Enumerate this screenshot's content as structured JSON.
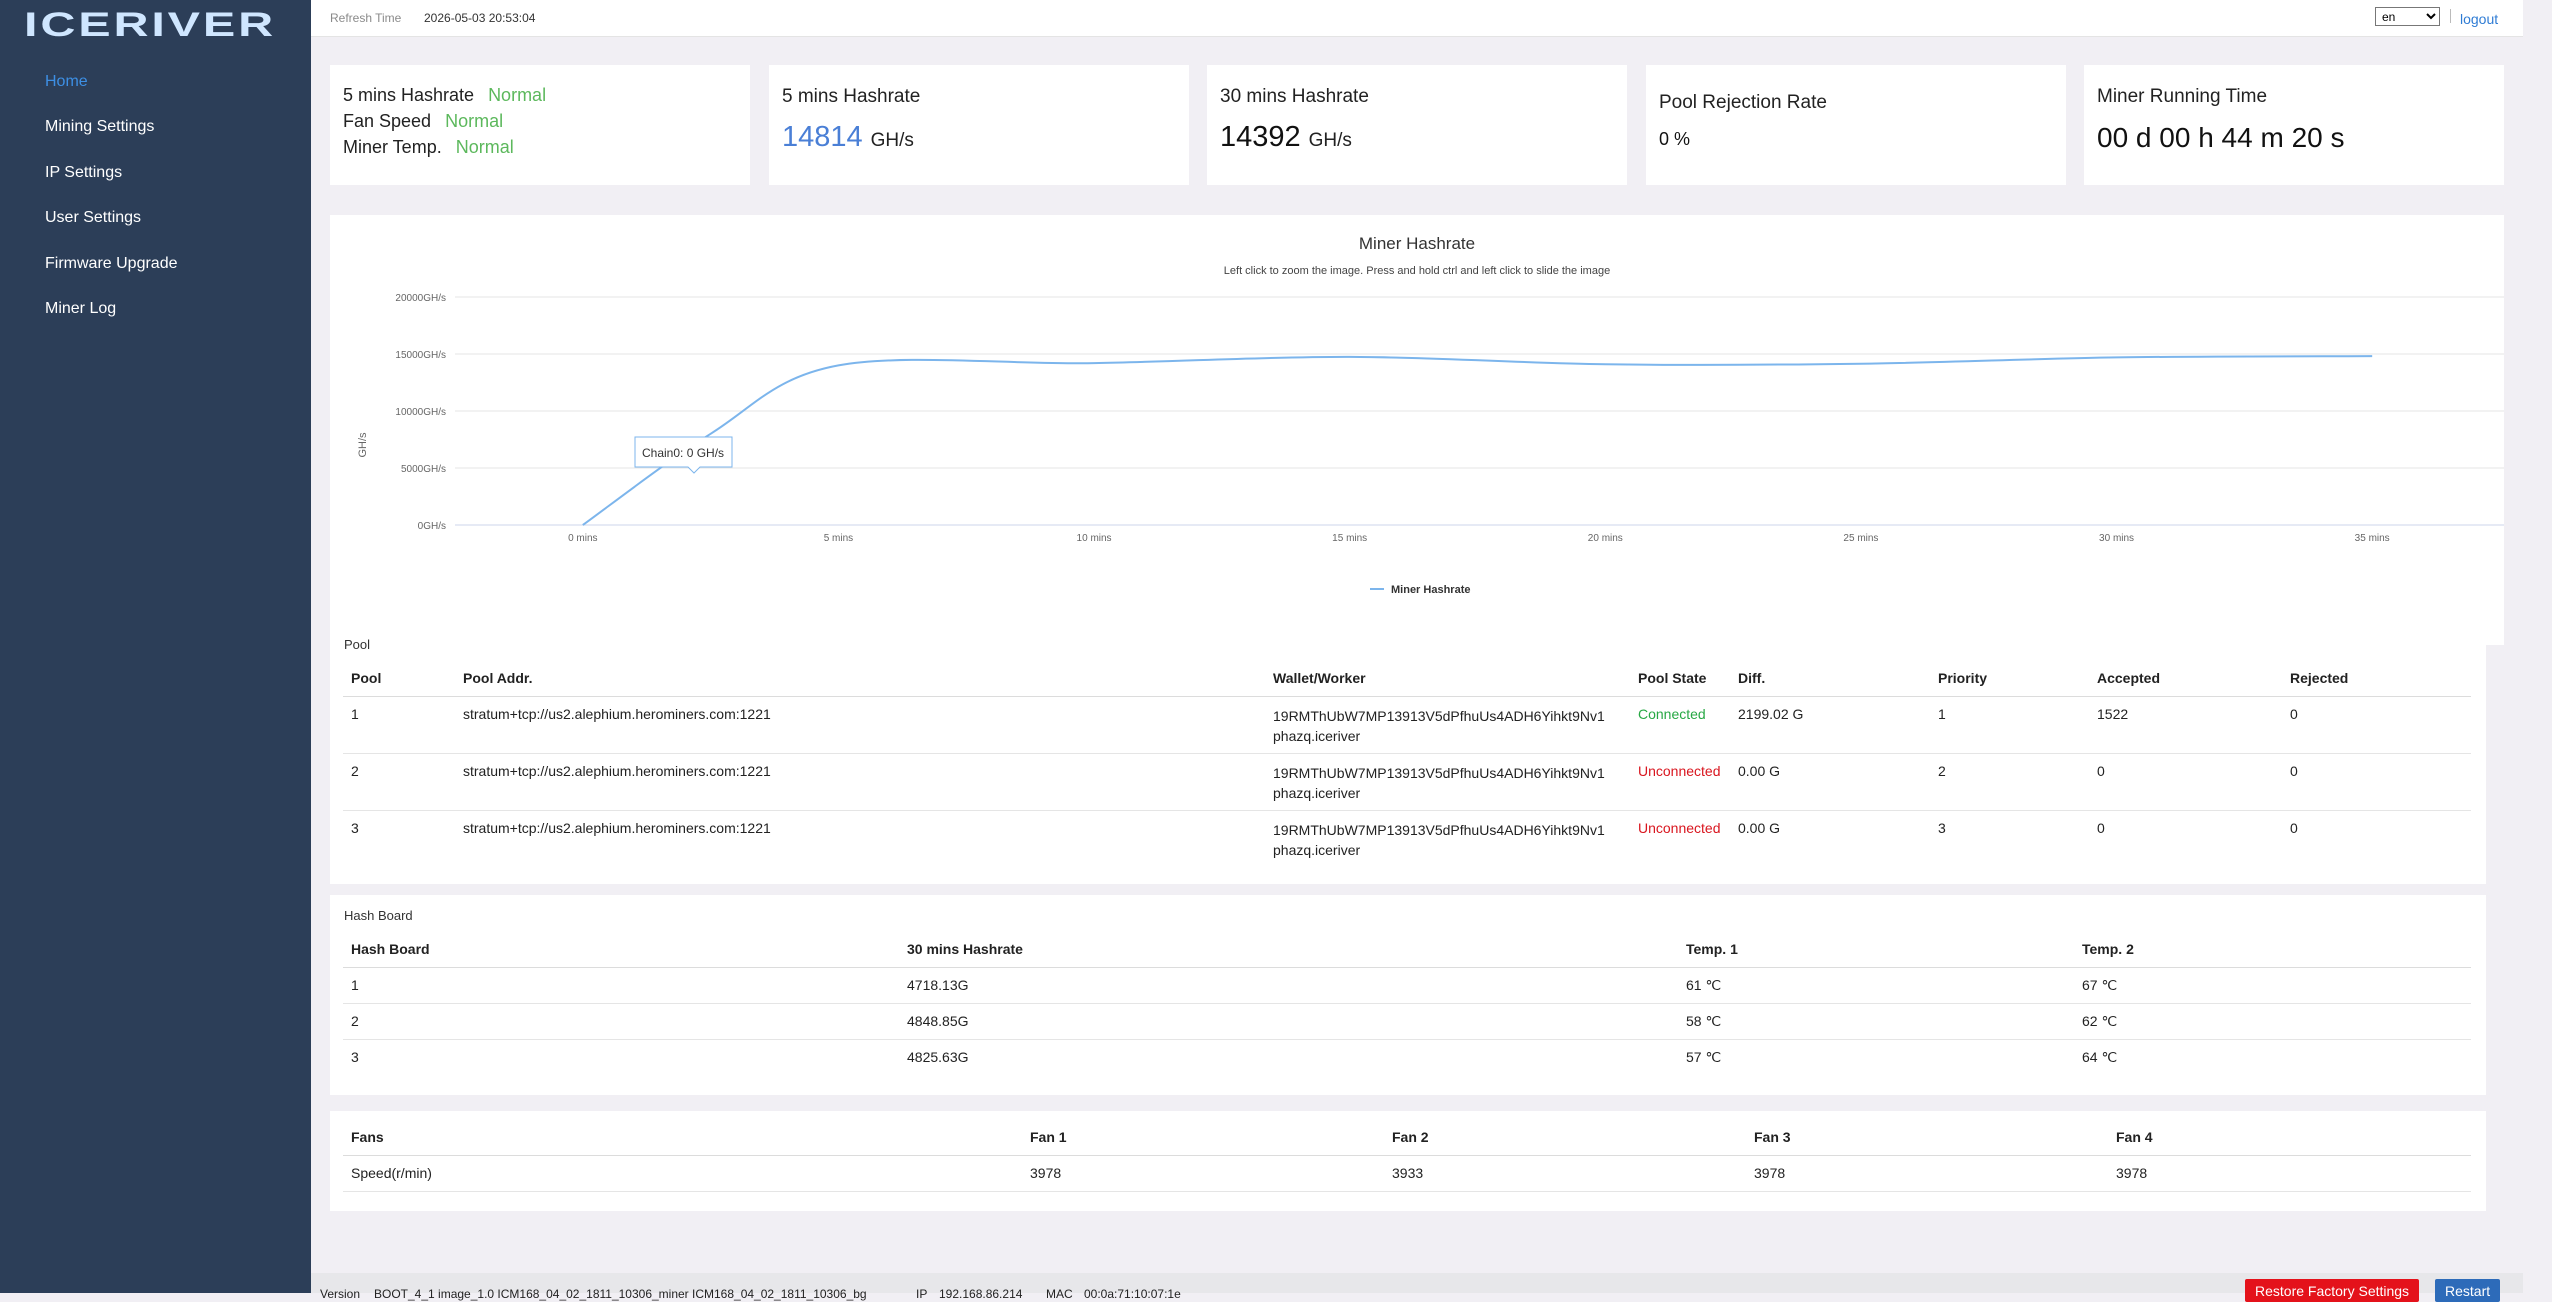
{
  "sidebar": {
    "logo_text": "ICERIVER",
    "items": [
      {
        "label": "Home",
        "active": true
      },
      {
        "label": "Mining Settings",
        "active": false
      },
      {
        "label": "IP Settings",
        "active": false
      },
      {
        "label": "User Settings",
        "active": false
      },
      {
        "label": "Firmware Upgrade",
        "active": false
      },
      {
        "label": "Miner Log",
        "active": false
      }
    ]
  },
  "header": {
    "refresh_label": "Refresh Time",
    "refresh_value": "2026-05-03 20:53:04",
    "language": "en",
    "logout_label": "logout"
  },
  "status_card": {
    "rows": [
      {
        "label": "5 mins Hashrate",
        "value": "Normal"
      },
      {
        "label": "Fan Speed",
        "value": "Normal"
      },
      {
        "label": "Miner Temp.",
        "value": "Normal"
      }
    ]
  },
  "stats": [
    {
      "title": "5 mins Hashrate",
      "value": "14814",
      "unit": "GH/s"
    },
    {
      "title": "30 mins Hashrate",
      "value": "14392",
      "unit": "GH/s"
    },
    {
      "title": "Pool Rejection Rate",
      "value": "0 %",
      "unit": ""
    },
    {
      "title": "Miner Running Time",
      "value": "00 d 00 h 44 m 20 s",
      "unit": ""
    }
  ],
  "chart_data": {
    "type": "line",
    "title": "Miner Hashrate",
    "subtitle": "Left click to zoom the image. Press and hold ctrl and left click to slide the image",
    "ylabel": "GH/s",
    "xlabel": "",
    "x_ticks": [
      "0 mins",
      "5 mins",
      "10 mins",
      "15 mins",
      "20 mins",
      "25 mins",
      "30 mins",
      "35 mins"
    ],
    "y_ticks": [
      "0GH/s",
      "5000GH/s",
      "10000GH/s",
      "15000GH/s",
      "20000GH/s"
    ],
    "ylim": [
      0,
      20000
    ],
    "xlim": [
      -2.5,
      37.5
    ],
    "grid": true,
    "legend_position": "bottom",
    "color": "#7cb5ec",
    "series": [
      {
        "name": "Miner Hashrate",
        "x": [
          0,
          2.5,
          5,
          10,
          15,
          20,
          25,
          30,
          35
        ],
        "y": [
          0,
          8000,
          14000,
          14200,
          14750,
          14100,
          14150,
          14700,
          14814
        ]
      }
    ],
    "tooltip": "Chain0: 0 GH/s"
  },
  "pool": {
    "title": "Pool",
    "headers": [
      "Pool",
      "Pool Addr.",
      "Wallet/Worker",
      "Pool State",
      "Diff.",
      "Priority",
      "Accepted",
      "Rejected"
    ],
    "rows": [
      {
        "pool": "1",
        "addr": "stratum+tcp://us2.alephium.herominers.com:1221",
        "wallet": "19RMThUbW7MP13913V5dPfhuUs4ADH6Yihkt9Nv1",
        "worker": "phazq.iceriver",
        "state": "Connected",
        "diff": "2199.02 G",
        "priority": "1",
        "accepted": "1522",
        "rejected": "0"
      },
      {
        "pool": "2",
        "addr": "stratum+tcp://us2.alephium.herominers.com:1221",
        "wallet": "19RMThUbW7MP13913V5dPfhuUs4ADH6Yihkt9Nv1",
        "worker": "phazq.iceriver",
        "state": "Unconnected",
        "diff": "0.00 G",
        "priority": "2",
        "accepted": "0",
        "rejected": "0"
      },
      {
        "pool": "3",
        "addr": "stratum+tcp://us2.alephium.herominers.com:1221",
        "wallet": "19RMThUbW7MP13913V5dPfhuUs4ADH6Yihkt9Nv1",
        "worker": "phazq.iceriver",
        "state": "Unconnected",
        "diff": "0.00 G",
        "priority": "3",
        "accepted": "0",
        "rejected": "0"
      }
    ]
  },
  "hashboard": {
    "title": "Hash Board",
    "headers": [
      "Hash Board",
      "30 mins Hashrate",
      "Temp. 1",
      "Temp. 2"
    ],
    "rows": [
      {
        "board": "1",
        "hashrate": "4718.13G",
        "temp1": "61 ℃",
        "temp2": "67 ℃"
      },
      {
        "board": "2",
        "hashrate": "4848.85G",
        "temp1": "58 ℃",
        "temp2": "62 ℃"
      },
      {
        "board": "3",
        "hashrate": "4825.63G",
        "temp1": "57 ℃",
        "temp2": "64 ℃"
      }
    ]
  },
  "fans": {
    "headers": [
      "Fans",
      "Fan 1",
      "Fan 2",
      "Fan 3",
      "Fan 4"
    ],
    "row": {
      "label": "Speed(r/min)",
      "values": [
        "3978",
        "3933",
        "3978",
        "3978"
      ]
    }
  },
  "footer": {
    "version_label": "Version",
    "version_value": "BOOT_4_1 image_1.0 ICM168_04_02_1811_10306_miner ICM168_04_02_1811_10306_bg",
    "ip_label": "IP",
    "ip_value": "192.168.86.214",
    "mac_label": "MAC",
    "mac_value": "00:0a:71:10:07:1e",
    "restore_label": "Restore Factory Settings",
    "restart_label": "Restart"
  },
  "colors": {
    "sidebar_bg": "#2c3e58",
    "accent": "#3d8fe4",
    "ok": "#5cb85c",
    "danger": "#e4121b",
    "chart_line": "#7cb5ec"
  }
}
